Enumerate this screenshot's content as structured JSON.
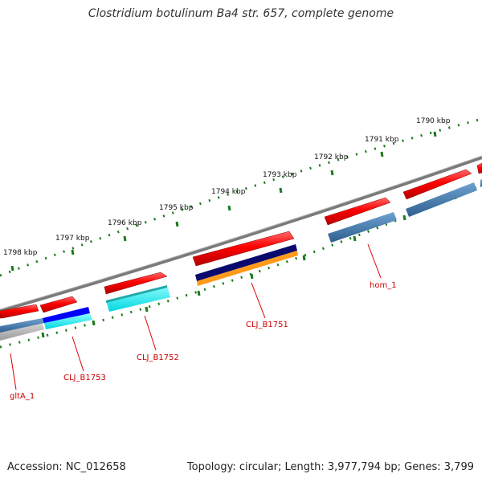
{
  "map": {
    "title": "Clostridium botulinum Ba4 str. 657, complete genome",
    "accession_text": "Accession: NC_012658",
    "summary_text": "Topology: circular; Length: 3,977,794 bp; Genes: 3,799",
    "topology": "circular",
    "length_bp": 3977794,
    "gene_count": 3799
  },
  "scale_ticks": [
    {
      "label": "1798 kbp",
      "kbp": 1798
    },
    {
      "label": "1797 kbp",
      "kbp": 1797
    },
    {
      "label": "1796 kbp",
      "kbp": 1796
    },
    {
      "label": "1795 kbp",
      "kbp": 1795
    },
    {
      "label": "1794 kbp",
      "kbp": 1794
    },
    {
      "label": "1793 kbp",
      "kbp": 1793
    },
    {
      "label": "1792 kbp",
      "kbp": 1792
    },
    {
      "label": "1791 kbp",
      "kbp": 1791
    },
    {
      "label": "1790 kbp",
      "kbp": 1790
    }
  ],
  "gene_labels": [
    {
      "label": "gltA_1",
      "key": "glta-1"
    },
    {
      "label": "CLJ_B1753",
      "key": "clj-b1753"
    },
    {
      "label": "CLJ_B1752",
      "key": "clj-b1752"
    },
    {
      "label": "CLJ_B1751",
      "key": "clj-b1751"
    },
    {
      "label": "hom_1",
      "key": "hom-1"
    }
  ],
  "colors": {
    "backbone": "#7a7a7a",
    "tick": "#1a7a1a",
    "cds_forward": "#ff0000",
    "cds_reverse": "#ff0000",
    "blue_track": "#4682b4",
    "cyan_track": "#00ffff",
    "navy_track": "#0a0a6e",
    "orange_track": "#ff9a1a",
    "royal_track": "#0000ff",
    "gray_track": "#a9a9a9",
    "label_red": "#cc0000",
    "label_line": "#dd0000"
  }
}
